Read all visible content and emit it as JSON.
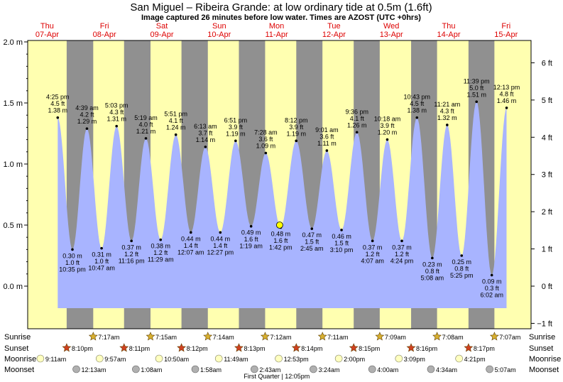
{
  "title": "San Miguel – Ribeira Grande: at low  ordinary tide at 0.5m (1.6ft)",
  "subtitle": "Image captured 26 minutes before low water. Times are AZOST (UTC +0hrs)",
  "colors": {
    "day": "#ffffb0",
    "night": "#909090",
    "tide": "#a8b4ff",
    "date_text": "#dd0000",
    "sun_star": "#d8b030",
    "sunset_star": "#d04020",
    "moonrise": "#ffffc0",
    "moonset": "#b0b0b0",
    "now_marker": "#ffff00"
  },
  "days": [
    {
      "name": "Thu",
      "date": "07-Apr"
    },
    {
      "name": "Fri",
      "date": "08-Apr"
    },
    {
      "name": "Sat",
      "date": "09-Apr"
    },
    {
      "name": "Sun",
      "date": "10-Apr"
    },
    {
      "name": "Mon",
      "date": "11-Apr"
    },
    {
      "name": "Tue",
      "date": "12-Apr"
    },
    {
      "name": "Wed",
      "date": "13-Apr"
    },
    {
      "name": "Thu",
      "date": "14-Apr"
    },
    {
      "name": "Fri",
      "date": "15-Apr"
    }
  ],
  "chart_data": {
    "type": "area",
    "x_axis": "time (hours from 07-Apr 00:00)",
    "ylim_m": [
      -0.18,
      2.0
    ],
    "y_left_ticks": [
      "0.0 m",
      "0.5 m",
      "1.0 m",
      "1.5 m",
      "2.0 m"
    ],
    "y_right_ticks": [
      "−1 ft",
      "0 ft",
      "1 ft",
      "2 ft",
      "3 ft",
      "4 ft",
      "5 ft",
      "6 ft"
    ],
    "extremes": [
      {
        "type": "high",
        "t": 16.42,
        "time": "4:25 pm",
        "ft": "4.5 ft",
        "m": "1.38 m"
      },
      {
        "type": "low",
        "t": 22.58,
        "time": "10:35 pm",
        "ft": "1.0 ft",
        "m": "0.30 m"
      },
      {
        "type": "high",
        "t": 28.65,
        "time": "4:39 am",
        "ft": "4.2 ft",
        "m": "1.29 m"
      },
      {
        "type": "low",
        "t": 34.78,
        "time": "10:47 am",
        "ft": "1.0 ft",
        "m": "0.31 m"
      },
      {
        "type": "high",
        "t": 41.05,
        "time": "5:03 pm",
        "ft": "4.3 ft",
        "m": "1.31 m"
      },
      {
        "type": "low",
        "t": 47.27,
        "time": "11:16 pm",
        "ft": "1.2 ft",
        "m": "0.37 m"
      },
      {
        "type": "high",
        "t": 53.32,
        "time": "5:19 am",
        "ft": "4.0 ft",
        "m": "1.21 m"
      },
      {
        "type": "low",
        "t": 59.48,
        "time": "11:29 am",
        "ft": "1.2 ft",
        "m": "0.38 m"
      },
      {
        "type": "high",
        "t": 65.85,
        "time": "5:51 pm",
        "ft": "4.1 ft",
        "m": "1.24 m"
      },
      {
        "type": "low",
        "t": 72.12,
        "time": "12:07 am",
        "ft": "1.4 ft",
        "m": "0.44 m"
      },
      {
        "type": "high",
        "t": 78.22,
        "time": "6:13 am",
        "ft": "3.7 ft",
        "m": "1.14 m"
      },
      {
        "type": "low",
        "t": 84.45,
        "time": "12:27 pm",
        "ft": "1.4 ft",
        "m": "0.44 m"
      },
      {
        "type": "high",
        "t": 90.85,
        "time": "6:51 pm",
        "ft": "3.9 ft",
        "m": "1.19 m"
      },
      {
        "type": "low",
        "t": 97.32,
        "time": "1:19 am",
        "ft": "1.6 ft",
        "m": "0.49 m"
      },
      {
        "type": "high",
        "t": 103.47,
        "time": "7:28 am",
        "ft": "3.6 ft",
        "m": "1.09 m"
      },
      {
        "type": "low",
        "t": 109.7,
        "time": "1:42 pm",
        "ft": "1.6 ft",
        "m": "0.48 m"
      },
      {
        "type": "high",
        "t": 116.2,
        "time": "8:12 pm",
        "ft": "3.9 ft",
        "m": "1.19 m"
      },
      {
        "type": "low",
        "t": 122.75,
        "time": "2:45 am",
        "ft": "1.5 ft",
        "m": "0.47 m"
      },
      {
        "type": "high",
        "t": 129.02,
        "time": "9:01 am",
        "ft": "3.6 ft",
        "m": "1.11 m"
      },
      {
        "type": "low",
        "t": 135.17,
        "time": "3:10 pm",
        "ft": "1.5 ft",
        "m": "0.46 m"
      },
      {
        "type": "high",
        "t": 141.6,
        "time": "9:36 pm",
        "ft": "4.1 ft",
        "m": "1.26 m"
      },
      {
        "type": "low",
        "t": 148.12,
        "time": "4:07 am",
        "ft": "1.2 ft",
        "m": "0.37 m"
      },
      {
        "type": "high",
        "t": 154.3,
        "time": "10:18 am",
        "ft": "3.9 ft",
        "m": "1.20 m"
      },
      {
        "type": "low",
        "t": 160.4,
        "time": "4:24 pm",
        "ft": "1.2 ft",
        "m": "0.37 m"
      },
      {
        "type": "high",
        "t": 166.72,
        "time": "10:43 pm",
        "ft": "4.5 ft",
        "m": "1.38 m"
      },
      {
        "type": "low",
        "t": 173.13,
        "time": "5:08 am",
        "ft": "0.8 ft",
        "m": "0.23 m"
      },
      {
        "type": "high",
        "t": 179.35,
        "time": "11:21 am",
        "ft": "4.3 ft",
        "m": "1.32 m"
      },
      {
        "type": "low",
        "t": 185.42,
        "time": "5:25 pm",
        "ft": "0.8 ft",
        "m": "0.25 m"
      },
      {
        "type": "high",
        "t": 191.65,
        "time": "11:39 pm",
        "ft": "5.0 ft",
        "m": "1.51 m"
      },
      {
        "type": "low",
        "t": 198.03,
        "time": "6:02 am",
        "ft": "0.3 ft",
        "m": "0.09 m"
      },
      {
        "type": "high",
        "t": 204.22,
        "time": "12:13 pm",
        "ft": "4.8 ft",
        "m": "1.46 m"
      }
    ],
    "now_marker": {
      "t": 109.27,
      "m": 0.5
    },
    "sun_rows": {
      "sunrise_label": "Sunrise",
      "sunset_label": "Sunset",
      "moonrise_label": "Moonrise",
      "moonset_label": "Moonset",
      "sunrise": [
        {
          "t": 31.28,
          "text": "7:17am"
        },
        {
          "t": 55.25,
          "text": "7:15am"
        },
        {
          "t": 79.23,
          "text": "7:14am"
        },
        {
          "t": 103.2,
          "text": "7:12am"
        },
        {
          "t": 127.18,
          "text": "7:11am"
        },
        {
          "t": 151.15,
          "text": "7:09am"
        },
        {
          "t": 175.13,
          "text": "7:08am"
        },
        {
          "t": 199.12,
          "text": "7:07am"
        }
      ],
      "sunset": [
        {
          "t": 20.17,
          "text": "8:10pm"
        },
        {
          "t": 44.18,
          "text": "8:11pm"
        },
        {
          "t": 68.2,
          "text": "8:12pm"
        },
        {
          "t": 92.22,
          "text": "8:13pm"
        },
        {
          "t": 116.23,
          "text": "8:14pm"
        },
        {
          "t": 140.25,
          "text": "8:15pm"
        },
        {
          "t": 164.27,
          "text": "8:16pm"
        },
        {
          "t": 188.28,
          "text": "8:17pm"
        }
      ],
      "moonrise": [
        {
          "t": 9.18,
          "text": "9:11am"
        },
        {
          "t": 33.95,
          "text": "9:57am"
        },
        {
          "t": 58.83,
          "text": "10:50am"
        },
        {
          "t": 83.82,
          "text": "11:49am"
        },
        {
          "t": 108.88,
          "text": "12:53pm"
        },
        {
          "t": 134.0,
          "text": "2:00pm"
        },
        {
          "t": 159.15,
          "text": "3:09pm"
        },
        {
          "t": 184.35,
          "text": "4:21pm"
        }
      ],
      "moonset": [
        {
          "t": 24.22,
          "text": "12:13am"
        },
        {
          "t": 49.13,
          "text": "1:08am"
        },
        {
          "t": 73.97,
          "text": "1:58am"
        },
        {
          "t": 98.72,
          "text": "2:43am"
        },
        {
          "t": 123.4,
          "text": "3:24am"
        },
        {
          "t": 148.0,
          "text": "4:00am"
        },
        {
          "t": 172.57,
          "text": "4:34am"
        },
        {
          "t": 197.12,
          "text": "5:07am"
        }
      ],
      "moon_phase": {
        "t": 108.08,
        "text": "First Quarter | 12:05pm"
      }
    }
  }
}
